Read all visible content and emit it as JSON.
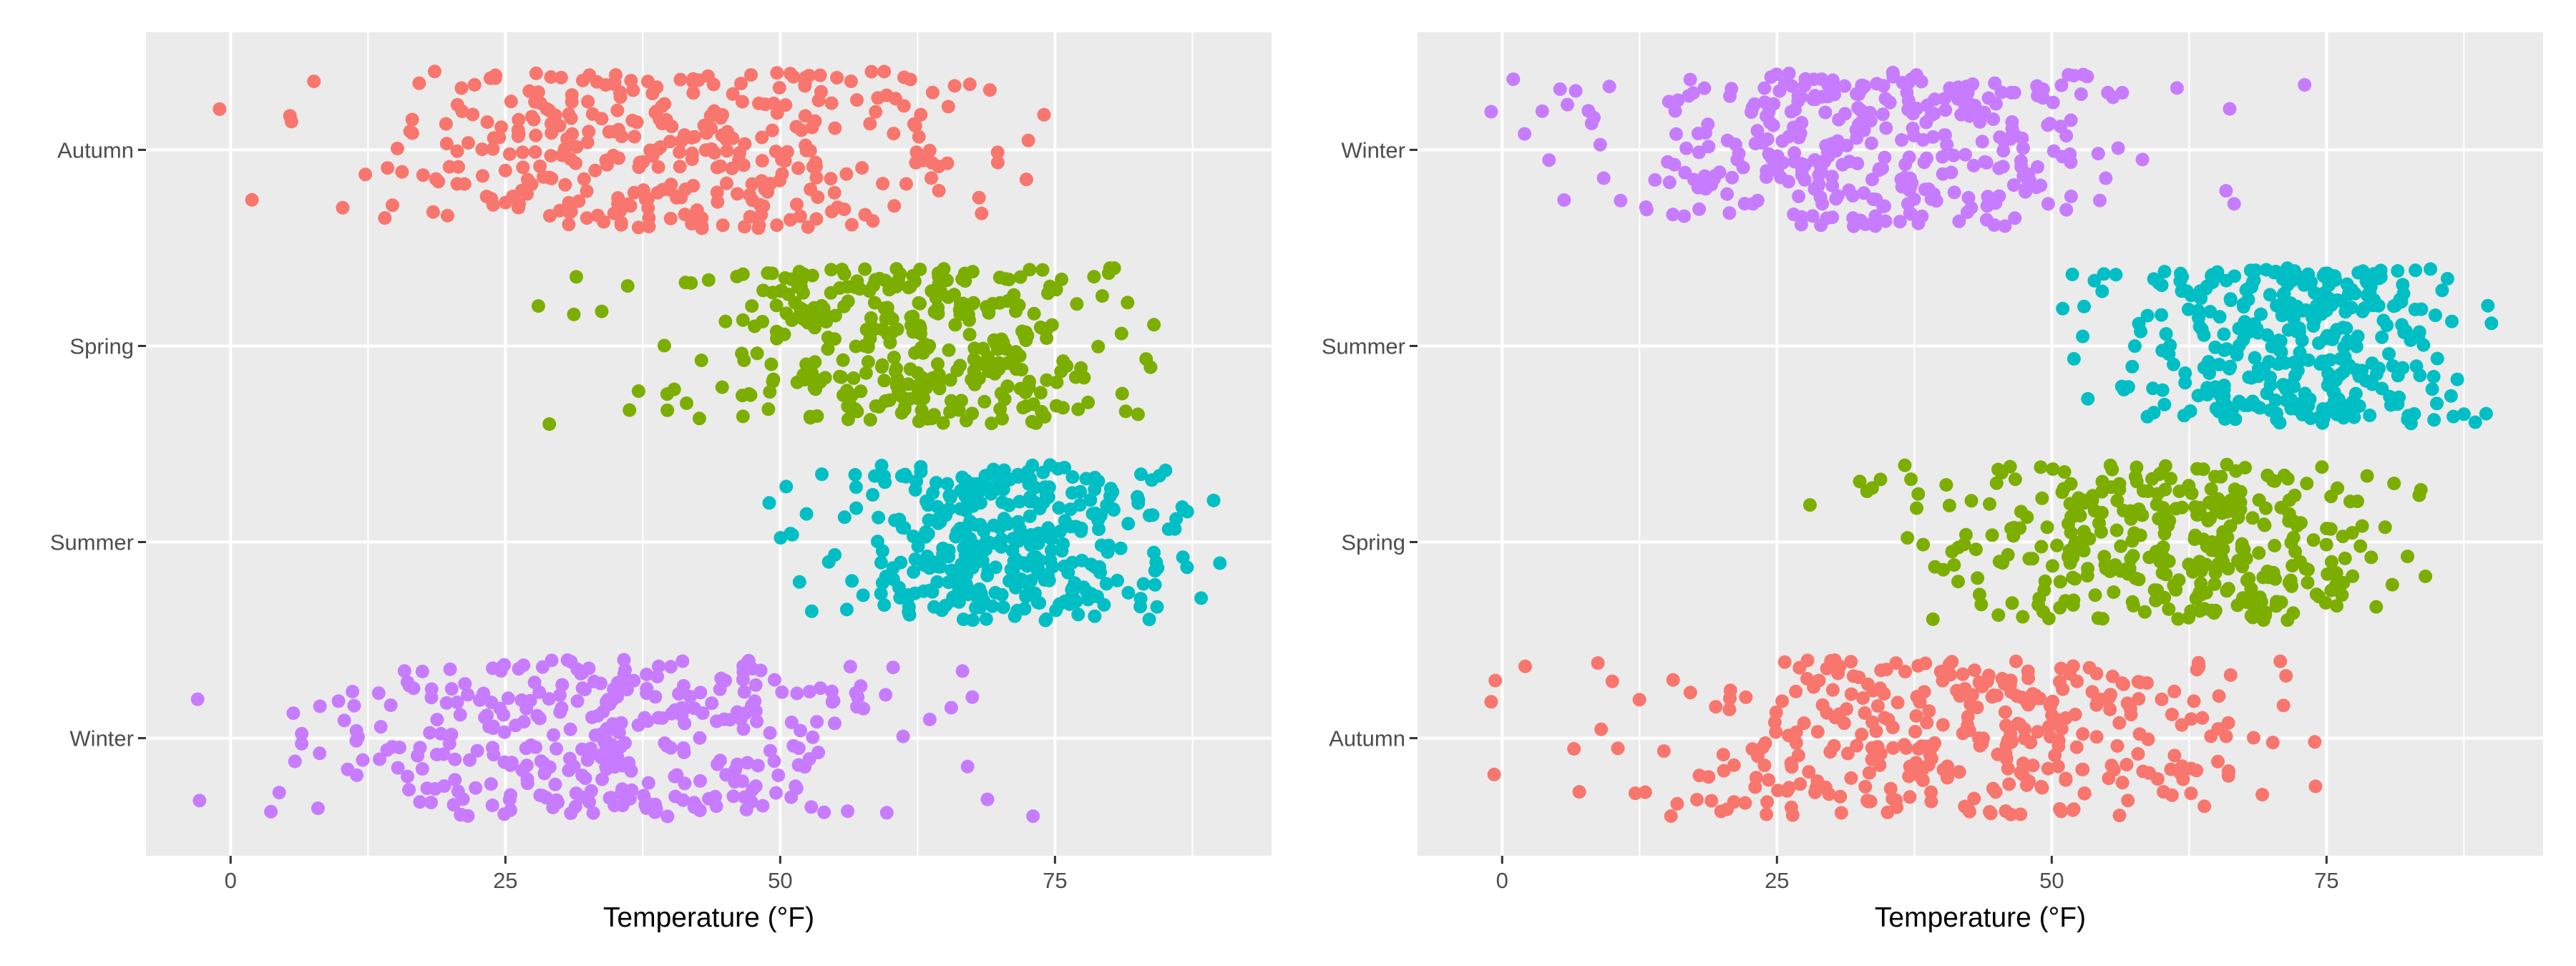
{
  "chart_data": [
    {
      "type": "scatter",
      "subtype": "jitter",
      "title": "",
      "xlabel": "Temperature (°F)",
      "ylabel": "",
      "xlim": [
        -7.7,
        94.7
      ],
      "xticks": [
        0,
        25,
        50,
        75
      ],
      "categories_top_to_bottom": [
        "Autumn",
        "Spring",
        "Summer",
        "Winter"
      ],
      "grid": true,
      "legend": "none",
      "jitter_height": 0.4,
      "series": [
        {
          "name": "Autumn",
          "color": "#F8766D",
          "n": 360,
          "mean": 40,
          "sd": 15,
          "min": -1,
          "max": 74,
          "seed": 11
        },
        {
          "name": "Spring",
          "color": "#7CAE00",
          "n": 360,
          "mean": 61,
          "sd": 11,
          "min": 28,
          "max": 84,
          "seed": 23
        },
        {
          "name": "Summer",
          "color": "#00BFC4",
          "n": 360,
          "mean": 70,
          "sd": 8,
          "min": 49,
          "max": 90,
          "seed": 37
        },
        {
          "name": "Winter",
          "color": "#C77CFF",
          "n": 360,
          "mean": 34,
          "sd": 13,
          "min": -3,
          "max": 73,
          "seed": 41
        }
      ]
    },
    {
      "type": "scatter",
      "subtype": "jitter",
      "title": "",
      "xlabel": "Temperature (°F)",
      "ylabel": "",
      "xlim": [
        -7.7,
        94.7
      ],
      "xticks": [
        0,
        25,
        50,
        75
      ],
      "categories_top_to_bottom": [
        "Winter",
        "Summer",
        "Spring",
        "Autumn"
      ],
      "grid": true,
      "legend": "none",
      "jitter_height": 0.4,
      "series": [
        {
          "name": "Winter",
          "color": "#C77CFF",
          "n": 360,
          "mean": 34,
          "sd": 13,
          "min": -1,
          "max": 73,
          "seed": 53
        },
        {
          "name": "Summer",
          "color": "#00BFC4",
          "n": 360,
          "mean": 71,
          "sd": 8,
          "min": 51,
          "max": 90,
          "seed": 67
        },
        {
          "name": "Spring",
          "color": "#7CAE00",
          "n": 360,
          "mean": 61,
          "sd": 11,
          "min": 28,
          "max": 84,
          "seed": 71
        },
        {
          "name": "Autumn",
          "color": "#F8766D",
          "n": 360,
          "mean": 41,
          "sd": 15,
          "min": -1,
          "max": 74,
          "seed": 83
        }
      ]
    }
  ]
}
